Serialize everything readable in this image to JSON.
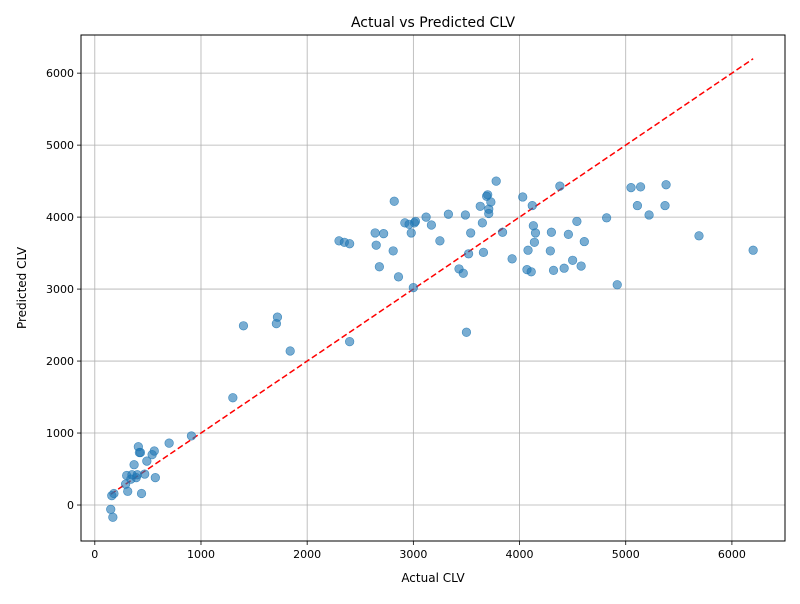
{
  "chart_data": {
    "type": "scatter",
    "title": "Actual vs Predicted CLV",
    "xlabel": "Actual CLV",
    "ylabel": "Predicted CLV",
    "xlim": [
      -130,
      6500
    ],
    "ylim": [
      -500,
      6530
    ],
    "xticks": [
      0,
      1000,
      2000,
      3000,
      4000,
      5000,
      6000
    ],
    "yticks": [
      0,
      1000,
      2000,
      3000,
      4000,
      5000,
      6000
    ],
    "grid": true,
    "point_color": "#1f77b4",
    "point_alpha": 0.6,
    "reference_line": {
      "from": [
        150,
        150
      ],
      "to": [
        6200,
        6200
      ],
      "color": "#ff0000",
      "style": "dashed"
    },
    "points": [
      [
        150,
        -60
      ],
      [
        170,
        -170
      ],
      [
        160,
        130
      ],
      [
        180,
        160
      ],
      [
        290,
        290
      ],
      [
        300,
        410
      ],
      [
        310,
        190
      ],
      [
        340,
        360
      ],
      [
        350,
        420
      ],
      [
        370,
        560
      ],
      [
        390,
        380
      ],
      [
        400,
        420
      ],
      [
        410,
        810
      ],
      [
        420,
        730
      ],
      [
        430,
        730
      ],
      [
        440,
        160
      ],
      [
        470,
        430
      ],
      [
        490,
        610
      ],
      [
        540,
        700
      ],
      [
        560,
        750
      ],
      [
        570,
        380
      ],
      [
        700,
        860
      ],
      [
        910,
        960
      ],
      [
        1300,
        1490
      ],
      [
        1400,
        2490
      ],
      [
        1710,
        2520
      ],
      [
        1720,
        2610
      ],
      [
        1840,
        2140
      ],
      [
        2300,
        3670
      ],
      [
        2350,
        3650
      ],
      [
        2400,
        3630
      ],
      [
        2400,
        2270
      ],
      [
        2640,
        3780
      ],
      [
        2650,
        3610
      ],
      [
        2680,
        3310
      ],
      [
        2720,
        3770
      ],
      [
        2810,
        3530
      ],
      [
        2820,
        4220
      ],
      [
        2860,
        3170
      ],
      [
        2920,
        3920
      ],
      [
        2960,
        3900
      ],
      [
        2980,
        3780
      ],
      [
        3000,
        3020
      ],
      [
        3010,
        3920
      ],
      [
        3020,
        3940
      ],
      [
        3120,
        4000
      ],
      [
        3170,
        3890
      ],
      [
        3250,
        3670
      ],
      [
        3330,
        4040
      ],
      [
        3430,
        3280
      ],
      [
        3470,
        3220
      ],
      [
        3490,
        4030
      ],
      [
        3500,
        2400
      ],
      [
        3520,
        3490
      ],
      [
        3540,
        3780
      ],
      [
        3630,
        4150
      ],
      [
        3650,
        3920
      ],
      [
        3660,
        3510
      ],
      [
        3690,
        4290
      ],
      [
        3700,
        4310
      ],
      [
        3710,
        4110
      ],
      [
        3710,
        4050
      ],
      [
        3730,
        4210
      ],
      [
        3780,
        4500
      ],
      [
        3840,
        3790
      ],
      [
        3930,
        3420
      ],
      [
        4030,
        4280
      ],
      [
        4070,
        3270
      ],
      [
        4080,
        3540
      ],
      [
        4110,
        3240
      ],
      [
        4120,
        4160
      ],
      [
        4130,
        3880
      ],
      [
        4140,
        3650
      ],
      [
        4150,
        3780
      ],
      [
        4290,
        3530
      ],
      [
        4300,
        3790
      ],
      [
        4320,
        3260
      ],
      [
        4380,
        4430
      ],
      [
        4420,
        3290
      ],
      [
        4460,
        3760
      ],
      [
        4500,
        3400
      ],
      [
        4540,
        3940
      ],
      [
        4580,
        3320
      ],
      [
        4610,
        3660
      ],
      [
        4820,
        3990
      ],
      [
        4920,
        3060
      ],
      [
        5050,
        4410
      ],
      [
        5110,
        4160
      ],
      [
        5140,
        4420
      ],
      [
        5220,
        4030
      ],
      [
        5370,
        4160
      ],
      [
        5380,
        4450
      ],
      [
        5690,
        3740
      ],
      [
        6200,
        3540
      ]
    ]
  }
}
